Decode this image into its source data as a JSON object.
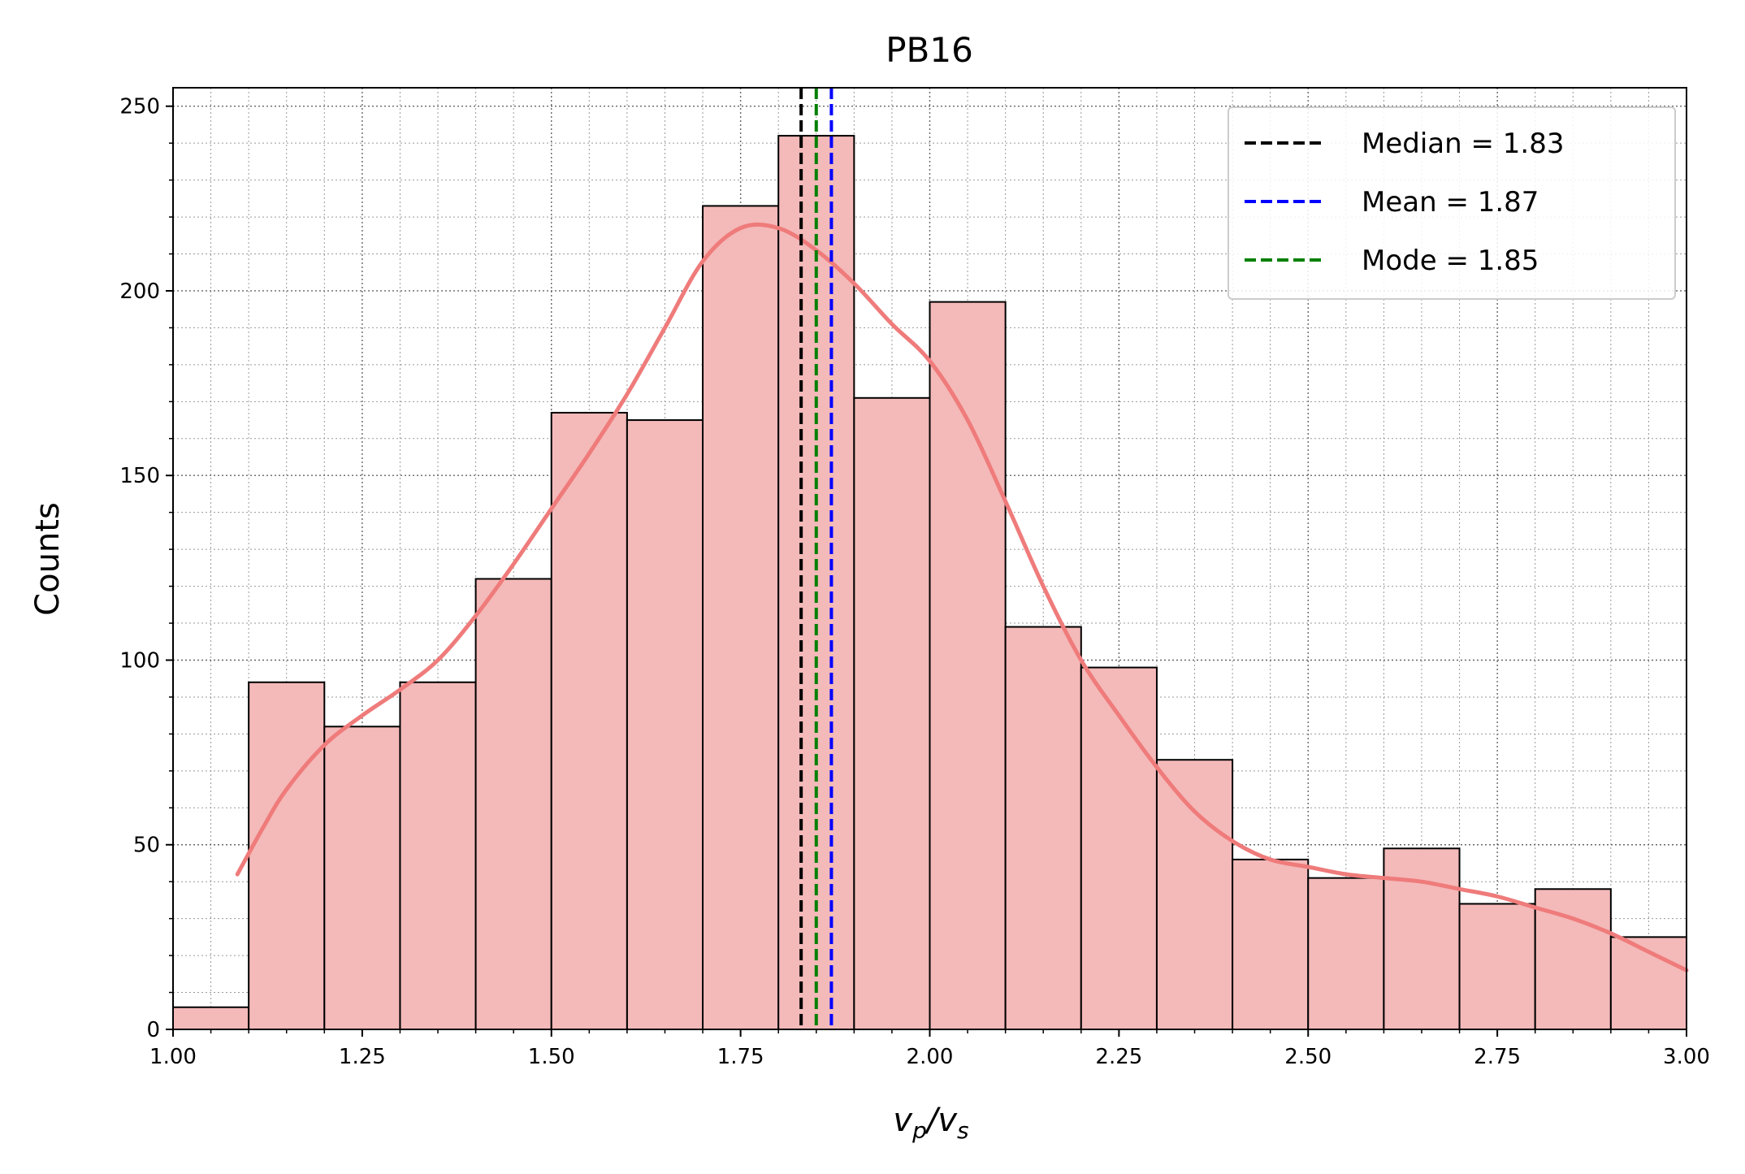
{
  "chart_data": {
    "type": "bar",
    "title": "PB16",
    "xlabel": "v_p/v_s",
    "ylabel": "Counts",
    "xlim": [
      1.0,
      3.0
    ],
    "ylim": [
      0,
      255
    ],
    "x_ticks": [
      "1.00",
      "1.25",
      "1.50",
      "1.75",
      "2.00",
      "2.25",
      "2.50",
      "2.75",
      "3.00"
    ],
    "y_ticks": [
      "0",
      "50",
      "100",
      "150",
      "200",
      "250"
    ],
    "grid": true,
    "legend_position": "top-right",
    "bin_edges": [
      1.0,
      1.1,
      1.2,
      1.3,
      1.4,
      1.5,
      1.6,
      1.7,
      1.8,
      1.9,
      2.0,
      2.1,
      2.2,
      2.3,
      2.4,
      2.5,
      2.6,
      2.7,
      2.8,
      2.9,
      3.0
    ],
    "counts": [
      6,
      94,
      82,
      94,
      122,
      167,
      165,
      223,
      242,
      171,
      197,
      109,
      98,
      73,
      46,
      41,
      49,
      34,
      38,
      25
    ],
    "bar_color": "#f4b9b9",
    "kde": {
      "color": "#ef7b7b",
      "x": [
        1.085,
        1.12,
        1.15,
        1.2,
        1.25,
        1.3,
        1.35,
        1.4,
        1.45,
        1.5,
        1.55,
        1.6,
        1.65,
        1.7,
        1.75,
        1.8,
        1.85,
        1.9,
        1.95,
        2.0,
        2.05,
        2.1,
        2.15,
        2.2,
        2.25,
        2.3,
        2.35,
        2.4,
        2.45,
        2.5,
        2.55,
        2.6,
        2.65,
        2.7,
        2.75,
        2.8,
        2.85,
        2.9,
        2.95,
        3.0
      ],
      "y": [
        42,
        55,
        65,
        77,
        85,
        92,
        100,
        112,
        126,
        141,
        156,
        172,
        190,
        208,
        217,
        217,
        211,
        202,
        191,
        181,
        165,
        143,
        120,
        100,
        85,
        71,
        59,
        51,
        46,
        44,
        42,
        41,
        40,
        38,
        36,
        33,
        30,
        26,
        21,
        16
      ]
    },
    "lines": [
      {
        "name": "Median",
        "value": 1.83,
        "label": "Median = 1.83",
        "color": "#000000"
      },
      {
        "name": "Mean",
        "value": 1.87,
        "label": "Mean = 1.87",
        "color": "#0000ff"
      },
      {
        "name": "Mode",
        "value": 1.85,
        "label": "Mode = 1.85",
        "color": "#008000"
      }
    ]
  }
}
